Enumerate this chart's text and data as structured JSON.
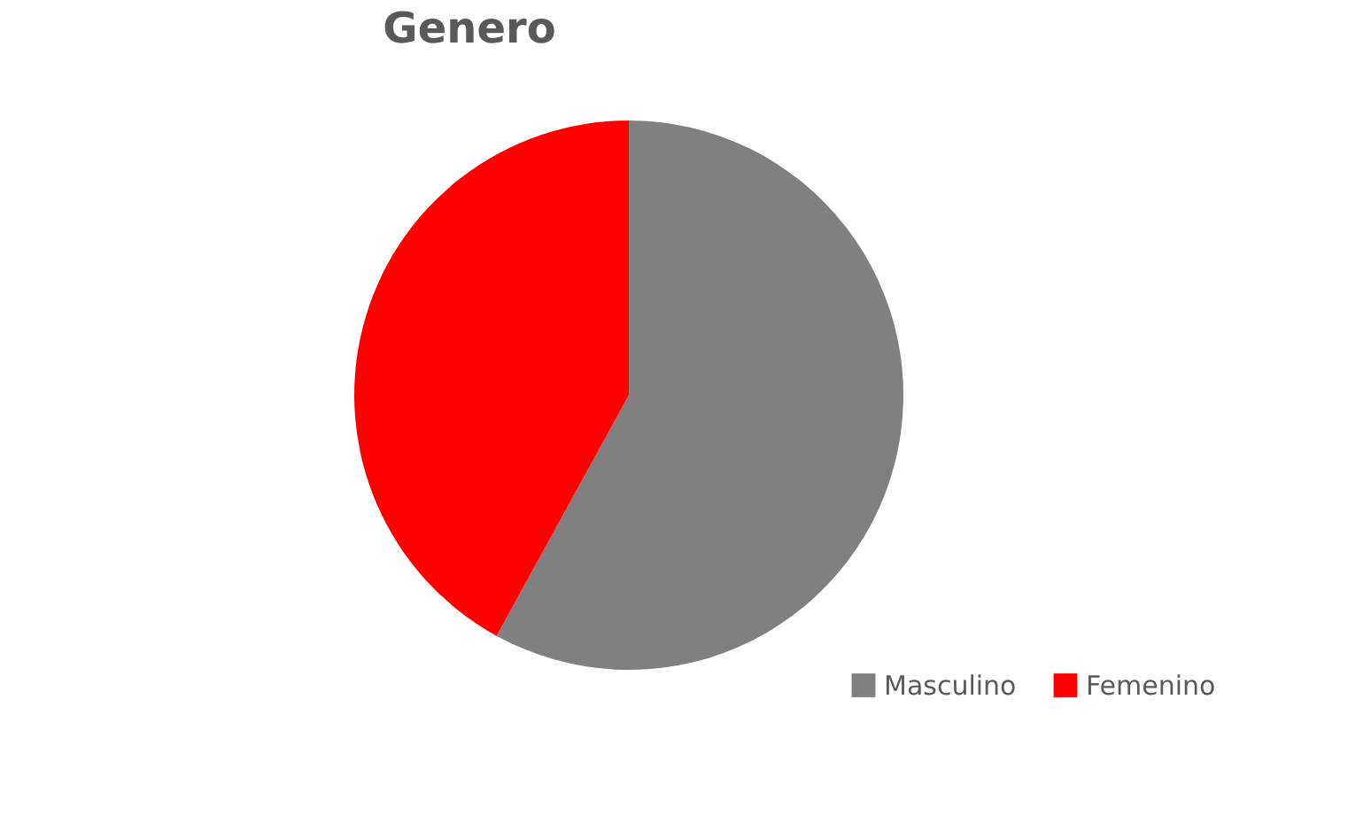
{
  "chart_data": {
    "type": "pie",
    "title": "Genero",
    "categories": [
      "Masculino",
      "Femenino"
    ],
    "values": [
      58,
      42
    ],
    "colors": [
      "#808080",
      "#ff0000"
    ],
    "legend": "bottom right"
  }
}
